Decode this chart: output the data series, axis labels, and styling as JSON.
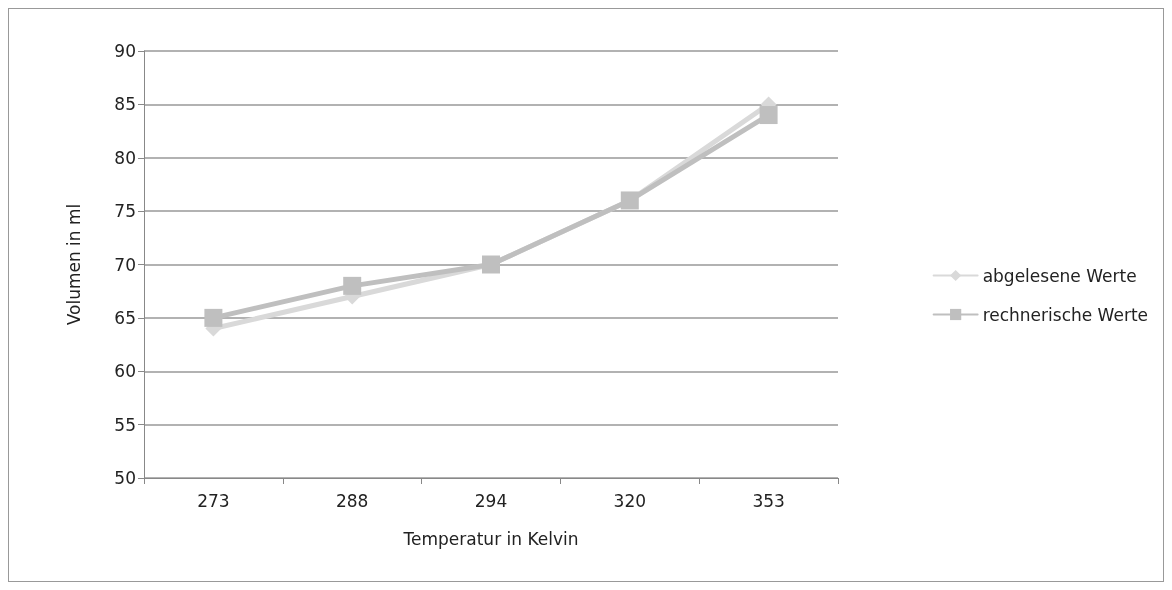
{
  "chart_data": {
    "type": "line",
    "xlabel": "Temperatur in Kelvin",
    "ylabel": "Volumen in ml",
    "categories": [
      "273",
      "288",
      "294",
      "320",
      "353"
    ],
    "series": [
      {
        "name": "abgelesene Werte",
        "color": "#d9d9d9",
        "marker": "diamond",
        "values": [
          64,
          67,
          70,
          76,
          85
        ]
      },
      {
        "name": "rechnerische Werte",
        "color": "#bfbfbf",
        "marker": "square",
        "values": [
          65,
          68,
          70,
          76,
          84
        ]
      }
    ],
    "ylim": [
      50,
      90
    ],
    "yticks": [
      50,
      55,
      60,
      65,
      70,
      75,
      80,
      85,
      90
    ],
    "grid": "y",
    "legend": "right"
  }
}
